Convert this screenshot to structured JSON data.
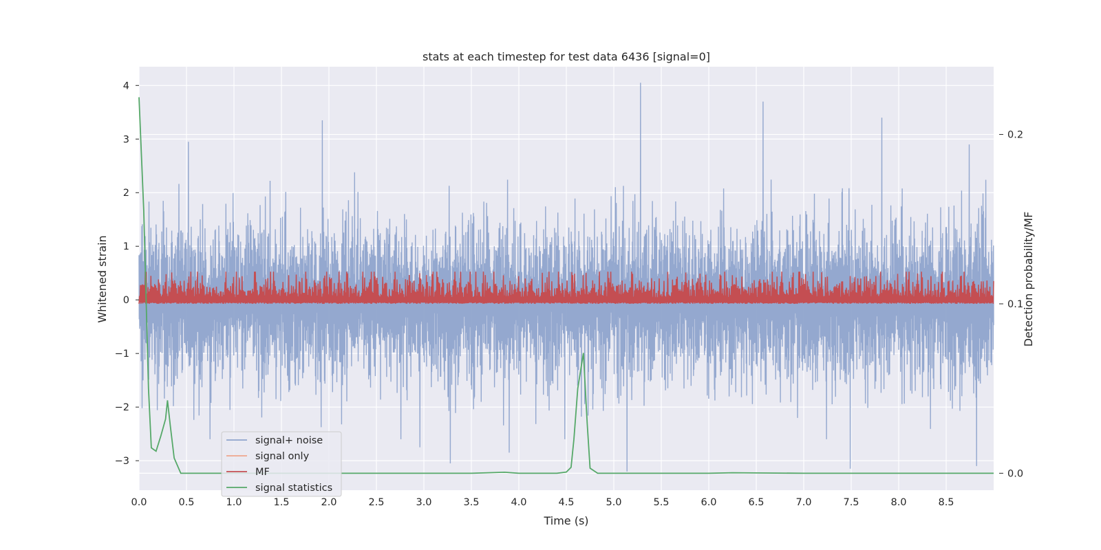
{
  "chart_data": {
    "type": "line",
    "title": "stats at each timestep for test data 6436 [signal=0]",
    "xlabel": "Time (s)",
    "ylabel": "Whitened strain",
    "y2label": "Detection probability/MF",
    "xlim": [
      0.0,
      9.0
    ],
    "ylim": [
      -3.55,
      4.35
    ],
    "y2lim": [
      -0.01,
      0.24
    ],
    "grid": true,
    "legend_position": "lower-left",
    "x_ticks": [
      "0.0",
      "0.5",
      "1.0",
      "1.5",
      "2.0",
      "2.5",
      "3.0",
      "3.5",
      "4.0",
      "4.5",
      "5.0",
      "5.5",
      "6.0",
      "6.5",
      "7.0",
      "7.5",
      "8.0",
      "8.5"
    ],
    "x_tick_values": [
      0.0,
      0.5,
      1.0,
      1.5,
      2.0,
      2.5,
      3.0,
      3.5,
      4.0,
      4.5,
      5.0,
      5.5,
      6.0,
      6.5,
      7.0,
      7.5,
      8.0,
      8.5
    ],
    "y_ticks": [
      "4",
      "3",
      "2",
      "1",
      "0",
      "−1",
      "−2",
      "−3"
    ],
    "y_tick_values": [
      4,
      3,
      2,
      1,
      0,
      -1,
      -2,
      -3
    ],
    "y2_ticks": [
      "0.2",
      "0.1",
      "0.0"
    ],
    "y2_tick_values": [
      0.2,
      0.1,
      0.0
    ],
    "series": [
      {
        "name": "signal+ noise",
        "color": "#8fa4cc",
        "axis": "left",
        "description_values": {
          "typical_upper_envelope": 1.6,
          "typical_lower_envelope": -1.8,
          "notable_peaks": [
            {
              "x": 0.52,
              "y": 2.95
            },
            {
              "x": 1.93,
              "y": 3.35
            },
            {
              "x": 5.28,
              "y": 4.05
            },
            {
              "x": 6.57,
              "y": 3.7
            },
            {
              "x": 7.82,
              "y": 3.4
            },
            {
              "x": 8.74,
              "y": 2.9
            }
          ],
          "notable_troughs": [
            {
              "x": 3.28,
              "y": -3.05
            },
            {
              "x": 5.14,
              "y": -3.2
            },
            {
              "x": 7.49,
              "y": -3.15
            },
            {
              "x": 8.82,
              "y": -3.1
            },
            {
              "x": 2.96,
              "y": -2.75
            },
            {
              "x": 3.9,
              "y": -2.85
            }
          ]
        }
      },
      {
        "name": "signal only",
        "color": "#eea58c",
        "axis": "left",
        "description_values": {
          "level": 0.0
        }
      },
      {
        "name": "MF",
        "color": "#c44e52",
        "axis": "right",
        "description_values": {
          "baseline": 0.1,
          "typical_max": 0.113,
          "peak_max": 0.119
        }
      },
      {
        "name": "signal statistics",
        "color": "#55a868",
        "axis": "right",
        "x": [
          0.0,
          0.05,
          0.1,
          0.13,
          0.18,
          0.23,
          0.28,
          0.3,
          0.33,
          0.37,
          0.44,
          0.5,
          1.0,
          2.0,
          3.0,
          3.5,
          3.85,
          4.0,
          4.4,
          4.5,
          4.55,
          4.58,
          4.62,
          4.68,
          4.72,
          4.75,
          4.83,
          5.0,
          6.0,
          6.25,
          7.0,
          8.0,
          8.5,
          9.0
        ],
        "values": [
          0.222,
          0.155,
          0.05,
          0.015,
          0.013,
          0.022,
          0.032,
          0.043,
          0.028,
          0.009,
          0.0,
          0.0,
          0.0,
          0.0,
          0.0,
          0.0,
          0.0006,
          0.0,
          0.0,
          0.0007,
          0.0035,
          0.02,
          0.05,
          0.071,
          0.029,
          0.003,
          0.0,
          0.0,
          0.0,
          0.0003,
          0.0,
          0.0,
          0.0,
          0.0
        ]
      }
    ]
  }
}
